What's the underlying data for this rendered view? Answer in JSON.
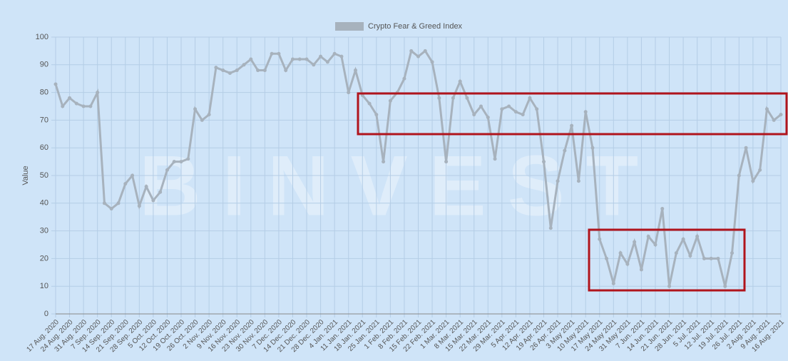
{
  "chart_data": {
    "type": "line",
    "watermark": "BINVEST",
    "y_label": "Value",
    "categories": [
      "17 Aug. 2020",
      null,
      "24 Aug. 2020",
      null,
      "31 Aug. 2020",
      null,
      "7 Sep. 2020",
      null,
      "14 Sep. 2020",
      null,
      "21 Sep. 2020",
      null,
      "28 Sep. 2020",
      null,
      "5 Oct. 2020",
      null,
      "12 Oct. 2020",
      null,
      "19 Oct. 2020",
      null,
      "26 Oct. 2020",
      null,
      "2 Nov. 2020",
      null,
      "9 Nov. 2020",
      null,
      "16 Nov. 2020",
      null,
      "23 Nov. 2020",
      null,
      "30 Nov. 2020",
      null,
      "7 Dec. 2020",
      null,
      "14 Dec. 2020",
      null,
      "21 Dec. 2020",
      null,
      "28 Dec. 2020",
      null,
      "4 Jan. 2021",
      null,
      "11 Jan. 2021",
      null,
      "18 Jan. 2021",
      null,
      "25 Jan. 2021",
      null,
      "1 Feb. 2021",
      null,
      "8 Feb. 2021",
      null,
      "15 Feb. 2021",
      null,
      "22 Feb. 2021",
      null,
      "1 Mar. 2021",
      null,
      "8 Mar. 2021",
      null,
      "15 Mar. 2021",
      null,
      "22 Mar. 2021",
      null,
      "29 Mar. 2021",
      null,
      "5 Apr. 2021",
      null,
      "12 Apr. 2021",
      null,
      "19 Apr. 2021",
      null,
      "26 Apr. 2021",
      null,
      "3 May 2021",
      null,
      "10 May 2021",
      null,
      "17 May 2021",
      null,
      "24 May 2021",
      null,
      "31 May 2021",
      null,
      "7 Jun. 2021",
      null,
      "14 Jun. 2021",
      null,
      "21 Jun. 2021",
      null,
      "28 Jun. 2021",
      null,
      "5 Jul. 2021",
      null,
      "12 Jul. 2021",
      null,
      "19 Jul. 2021",
      null,
      "26 Jul. 2021",
      null,
      "2 Aug. 2021",
      null,
      "9 Aug. 2021",
      null,
      "16 Aug. 2021"
    ],
    "series": [
      {
        "name": "Crypto Fear & Greed Index",
        "color": "#a7b2bd",
        "values": [
          83,
          75,
          78,
          76,
          75,
          75,
          80,
          40,
          38,
          40,
          47,
          50,
          39,
          46,
          41,
          44,
          52,
          55,
          55,
          56,
          74,
          70,
          72,
          89,
          88,
          87,
          88,
          90,
          92,
          88,
          88,
          94,
          94,
          88,
          92,
          92,
          92,
          90,
          93,
          91,
          94,
          93,
          80,
          88,
          79,
          76,
          72,
          55,
          77,
          80,
          85,
          95,
          93,
          95,
          91,
          78,
          55,
          78,
          84,
          78,
          72,
          75,
          71,
          56,
          74,
          75,
          73,
          72,
          78,
          74,
          55,
          31,
          48,
          59,
          68,
          48,
          73,
          60,
          27,
          20,
          11,
          22,
          18,
          26,
          16,
          28,
          25,
          38,
          10,
          22,
          27,
          21,
          28,
          20,
          20,
          20,
          10,
          22,
          50,
          60,
          48,
          52,
          74,
          70,
          72
        ]
      }
    ],
    "ylim": [
      0,
      100
    ],
    "yticks": [
      0,
      10,
      20,
      30,
      40,
      50,
      60,
      70,
      80,
      90,
      100
    ],
    "grid": true
  }
}
